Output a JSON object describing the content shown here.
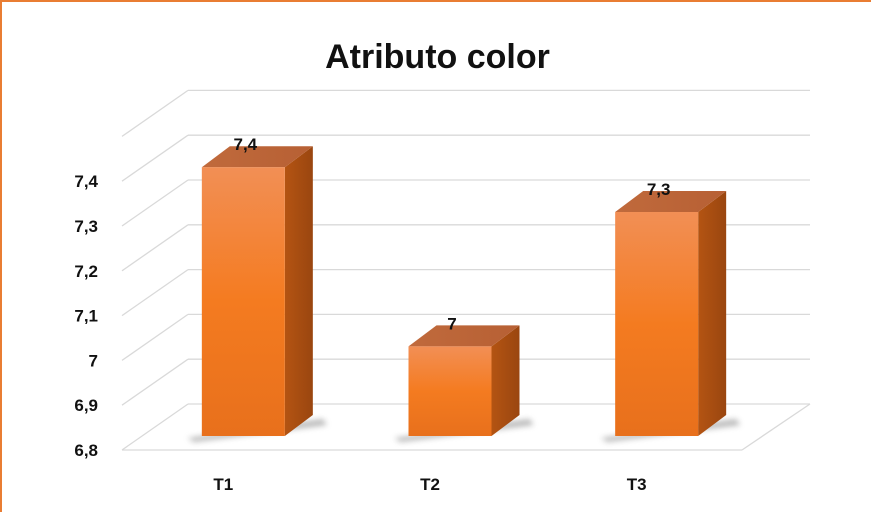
{
  "chart_data": {
    "type": "bar",
    "title": "Atributo color",
    "categories": [
      "T1",
      "T2",
      "T3"
    ],
    "values": [
      7.4,
      7.0,
      7.3
    ],
    "data_labels": [
      "7,4",
      "7",
      "7,3"
    ],
    "ylim": [
      6.8,
      7.5
    ],
    "yticks": [
      6.8,
      6.9,
      7.0,
      7.1,
      7.2,
      7.3,
      7.4
    ],
    "ytick_labels": [
      "6,8",
      "6,9",
      "7",
      "7,1",
      "7,2",
      "7,3",
      "7,4"
    ],
    "xlabel": "",
    "ylabel": "",
    "grid": true,
    "style": "3d-column",
    "bar_color": "#f07c2a"
  }
}
